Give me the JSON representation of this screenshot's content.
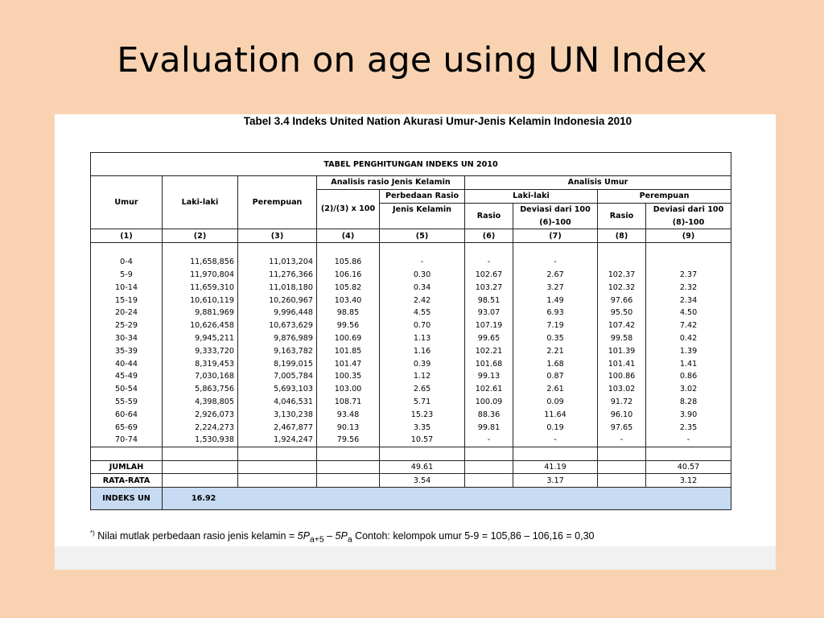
{
  "slide": {
    "title": "Evaluation on age using UN Index"
  },
  "table": {
    "caption": "Tabel 3.4 Indeks United Nation Akurasi Umur-Jenis Kelamin Indonesia  2010",
    "banner": "TABEL PENGHITUNGAN INDEKS UN 2010",
    "headers": {
      "umur": "Umur",
      "laki": "Laki-laki",
      "perempuan": "Perempuan",
      "analisis_rasio": "Analisis rasio Jenis Kelamin",
      "analisis_umur": "Analisis Umur",
      "rasio_formula": "(2)/(3) x 100",
      "perbedaan_rasio_1": "Perbedaan Rasio",
      "perbedaan_rasio_2": "Jenis Kelamin",
      "laki_group": "Laki-laki",
      "perempuan_group": "Perempuan",
      "rasio_l": "Rasio",
      "deviasi_l_1": "Deviasi dari 100",
      "deviasi_l_2": "(6)-100",
      "rasio_p": "Rasio",
      "deviasi_p_1": "Deviasi dari 100",
      "deviasi_p_2": "(8)-100"
    },
    "col_numbers": [
      "(1)",
      "(2)",
      "(3)",
      "(4)",
      "(5)",
      "(6)",
      "(7)",
      "(8)",
      "(9)"
    ],
    "rows": [
      [
        "0-4",
        "11,658,856",
        "11,013,204",
        "105.86",
        "-",
        "-",
        "-",
        "",
        ""
      ],
      [
        "5-9",
        "11,970,804",
        "11,276,366",
        "106.16",
        "0.30",
        "102.67",
        "2.67",
        "102.37",
        "2.37"
      ],
      [
        "10-14",
        "11,659,310",
        "11,018,180",
        "105.82",
        "0.34",
        "103.27",
        "3.27",
        "102.32",
        "2.32"
      ],
      [
        "15-19",
        "10,610,119",
        "10,260,967",
        "103.40",
        "2.42",
        "98.51",
        "1.49",
        "97.66",
        "2.34"
      ],
      [
        "20-24",
        "9,881,969",
        "9,996,448",
        "98.85",
        "4.55",
        "93.07",
        "6.93",
        "95.50",
        "4.50"
      ],
      [
        "25-29",
        "10,626,458",
        "10,673,629",
        "99.56",
        "0.70",
        "107.19",
        "7.19",
        "107.42",
        "7.42"
      ],
      [
        "30-34",
        "9,945,211",
        "9,876,989",
        "100.69",
        "1.13",
        "99.65",
        "0.35",
        "99.58",
        "0.42"
      ],
      [
        "35-39",
        "9,333,720",
        "9,163,782",
        "101.85",
        "1.16",
        "102.21",
        "2.21",
        "101.39",
        "1.39"
      ],
      [
        "40-44",
        "8,319,453",
        "8,199,015",
        "101.47",
        "0.39",
        "101.68",
        "1.68",
        "101.41",
        "1.41"
      ],
      [
        "45-49",
        "7,030,168",
        "7,005,784",
        "100.35",
        "1.12",
        "99.13",
        "0.87",
        "100.86",
        "0.86"
      ],
      [
        "50-54",
        "5,863,756",
        "5,693,103",
        "103.00",
        "2.65",
        "102.61",
        "2.61",
        "103.02",
        "3.02"
      ],
      [
        "55-59",
        "4,398,805",
        "4,046,531",
        "108.71",
        "5.71",
        "100.09",
        "0.09",
        "91.72",
        "8.28"
      ],
      [
        "60-64",
        "2,926,073",
        "3,130,238",
        "93.48",
        "15.23",
        "88.36",
        "11.64",
        "96.10",
        "3.90"
      ],
      [
        "65-69",
        "2,224,273",
        "2,467,877",
        "90.13",
        "3.35",
        "99.81",
        "0.19",
        "97.65",
        "2.35"
      ],
      [
        "70-74",
        "1,530,938",
        "1,924,247",
        "79.56",
        "10.57",
        "-",
        "-",
        "-",
        "-"
      ]
    ],
    "jumlah": {
      "label": "JUMLAH",
      "col5": "49.61",
      "col7": "41.19",
      "col9": "40.57"
    },
    "rata": {
      "label": "RATA-RATA",
      "col5": "3.54",
      "col7": "3.17",
      "col9": "3.12"
    },
    "indeks": {
      "label": "INDEKS UN",
      "value": "16.92"
    }
  },
  "footnote": {
    "marker": "*)",
    "text": "Nilai mutlak perbedaan rasio jenis kelamin = ",
    "formula_a": "5P",
    "formula_a_sub": "a+5",
    "minus": " – ",
    "formula_b": "5P",
    "formula_b_sub": "a",
    "example": " Contoh: kelompok umur 5-9 = 105,86 – 106,16 =  0,30"
  }
}
